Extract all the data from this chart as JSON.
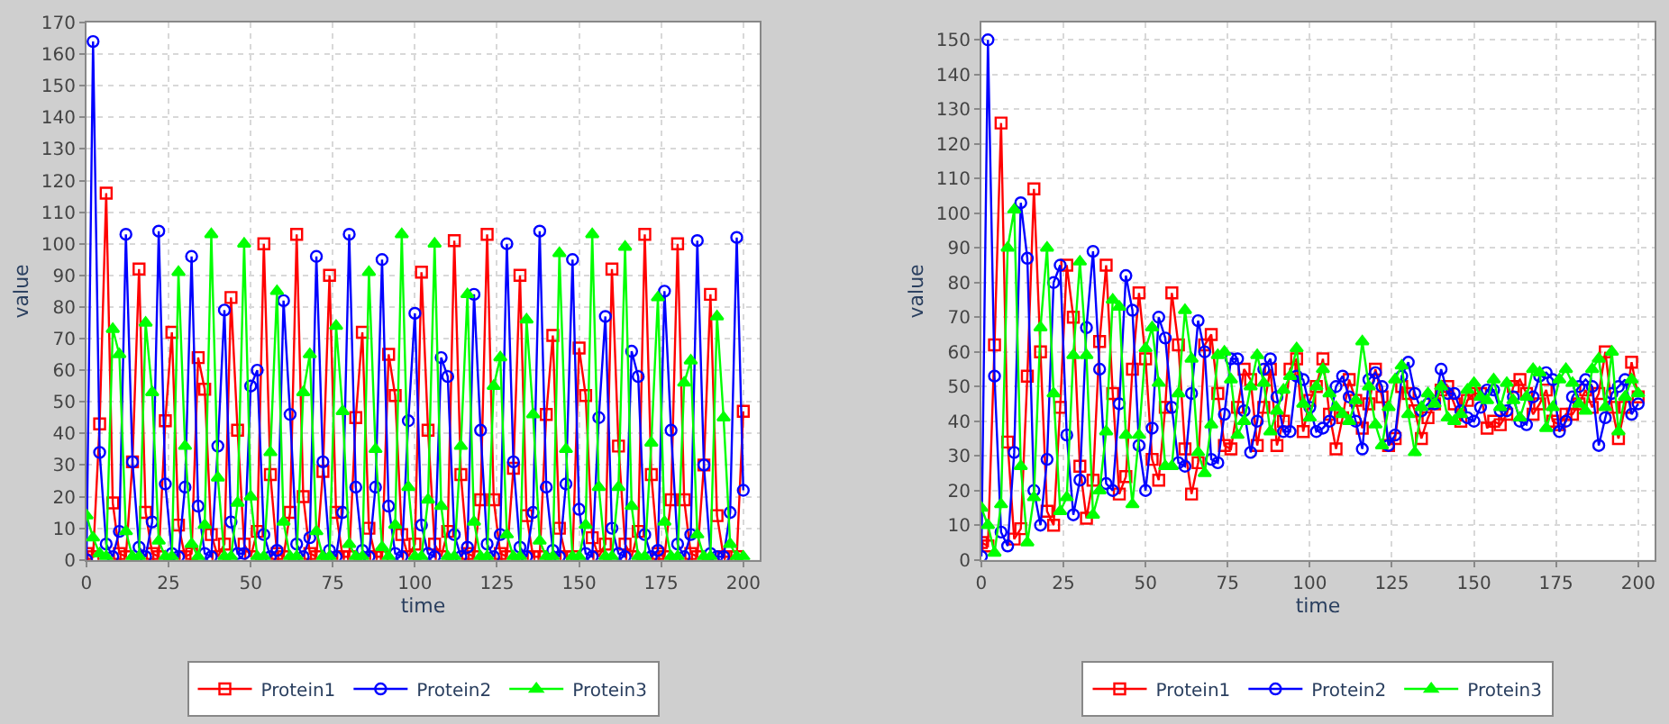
{
  "chart_data": [
    {
      "type": "line",
      "xlabel": "time",
      "ylabel": "value",
      "xlim": [
        0,
        205
      ],
      "ylim": [
        0,
        170
      ],
      "xticks": [
        0,
        25,
        50,
        75,
        100,
        125,
        150,
        175,
        200
      ],
      "yticks": [
        0,
        10,
        20,
        30,
        40,
        50,
        60,
        70,
        80,
        90,
        100,
        110,
        120,
        130,
        140,
        150,
        160,
        170
      ],
      "grid": true,
      "legend": "bottom",
      "x": [
        0,
        2,
        4,
        6,
        8,
        10,
        12,
        14,
        16,
        18,
        20,
        22,
        24,
        26,
        28,
        30,
        32,
        34,
        36,
        38,
        40,
        42,
        44,
        46,
        48,
        50,
        52,
        54,
        56,
        58,
        60,
        62,
        64,
        66,
        68,
        70,
        72,
        74,
        76,
        78,
        80,
        82,
        84,
        86,
        88,
        90,
        92,
        94,
        96,
        98,
        100,
        102,
        104,
        106,
        108,
        110,
        112,
        114,
        116,
        118,
        120,
        122,
        124,
        126,
        128,
        130,
        132,
        134,
        136,
        138,
        140,
        142,
        144,
        146,
        148,
        150,
        152,
        154,
        156,
        158,
        160,
        162,
        164,
        166,
        168,
        170,
        172,
        174,
        176,
        178,
        180,
        182,
        184,
        186,
        188,
        190,
        192,
        194,
        196,
        198,
        200
      ],
      "series": [
        {
          "name": "Protein1",
          "color": "#ff0000",
          "marker": "square",
          "values": [
            2,
            1,
            43,
            116,
            18,
            2,
            1,
            31,
            92,
            15,
            2,
            1,
            44,
            72,
            11,
            1,
            2,
            64,
            54,
            8,
            1,
            5,
            83,
            41,
            5,
            1,
            9,
            100,
            27,
            2,
            1,
            15,
            103,
            20,
            2,
            1,
            28,
            90,
            15,
            1,
            1,
            45,
            72,
            10,
            1,
            1,
            65,
            52,
            8,
            1,
            5,
            91,
            41,
            5,
            1,
            9,
            101,
            27,
            2,
            1,
            19,
            103,
            19,
            2,
            1,
            29,
            90,
            14,
            1,
            1,
            46,
            71,
            10,
            1,
            1,
            67,
            52,
            7,
            1,
            5,
            92,
            36,
            5,
            1,
            9,
            103,
            27,
            2,
            1,
            19,
            100,
            19,
            2,
            1,
            30,
            84,
            14,
            1,
            1,
            1,
            47
          ]
        },
        {
          "name": "Protein2",
          "color": "#0000ff",
          "marker": "circle",
          "values": [
            0,
            164,
            34,
            5,
            1,
            9,
            103,
            31,
            4,
            1,
            12,
            104,
            24,
            2,
            1,
            23,
            96,
            17,
            2,
            1,
            36,
            79,
            12,
            2,
            2,
            55,
            60,
            8,
            1,
            3,
            82,
            46,
            5,
            1,
            7,
            96,
            31,
            3,
            1,
            15,
            103,
            23,
            3,
            1,
            23,
            95,
            17,
            2,
            1,
            44,
            78,
            11,
            2,
            1,
            64,
            58,
            8,
            1,
            4,
            84,
            41,
            5,
            1,
            8,
            100,
            31,
            4,
            1,
            15,
            104,
            23,
            3,
            1,
            24,
            95,
            16,
            2,
            1,
            45,
            77,
            10,
            2,
            1,
            66,
            58,
            8,
            1,
            3,
            85,
            41,
            5,
            1,
            8,
            101,
            30,
            2,
            1,
            1,
            15,
            102,
            22
          ]
        },
        {
          "name": "Protein3",
          "color": "#00ff00",
          "marker": "triangle",
          "values": [
            14,
            7,
            2,
            1,
            73,
            65,
            9,
            1,
            1,
            75,
            53,
            6,
            1,
            1,
            91,
            36,
            5,
            1,
            11,
            103,
            26,
            1,
            1,
            18,
            100,
            20,
            1,
            1,
            34,
            85,
            12,
            1,
            1,
            53,
            65,
            9,
            1,
            1,
            74,
            47,
            5,
            1,
            1,
            91,
            35,
            4,
            1,
            11,
            103,
            23,
            1,
            1,
            19,
            100,
            17,
            1,
            1,
            36,
            84,
            12,
            1,
            1,
            55,
            64,
            8,
            1,
            1,
            76,
            46,
            6,
            1,
            1,
            97,
            35,
            1,
            1,
            11,
            103,
            23,
            1,
            1,
            23,
            99,
            17,
            1,
            1,
            37,
            83,
            12,
            1,
            1,
            56,
            63,
            8,
            1,
            1,
            77,
            45,
            5,
            1,
            1
          ]
        }
      ]
    },
    {
      "type": "line",
      "xlabel": "time",
      "ylabel": "value",
      "xlim": [
        0,
        205
      ],
      "ylim": [
        0,
        155
      ],
      "xticks": [
        0,
        25,
        50,
        75,
        100,
        125,
        150,
        175,
        200
      ],
      "yticks": [
        0,
        10,
        20,
        30,
        40,
        50,
        60,
        70,
        80,
        90,
        100,
        110,
        120,
        130,
        140,
        150
      ],
      "grid": true,
      "legend": "bottom",
      "x": [
        0,
        2,
        4,
        6,
        8,
        10,
        12,
        14,
        16,
        18,
        20,
        22,
        24,
        26,
        28,
        30,
        32,
        34,
        36,
        38,
        40,
        42,
        44,
        46,
        48,
        50,
        52,
        54,
        56,
        58,
        60,
        62,
        64,
        66,
        68,
        70,
        72,
        74,
        76,
        78,
        80,
        82,
        84,
        86,
        88,
        90,
        92,
        94,
        96,
        98,
        100,
        102,
        104,
        106,
        108,
        110,
        112,
        114,
        116,
        118,
        120,
        122,
        124,
        126,
        128,
        130,
        132,
        134,
        136,
        138,
        140,
        142,
        144,
        146,
        148,
        150,
        152,
        154,
        156,
        158,
        160,
        162,
        164,
        166,
        168,
        170,
        172,
        174,
        176,
        178,
        180,
        182,
        184,
        186,
        188,
        190,
        192,
        194,
        196,
        198,
        200
      ],
      "series": [
        {
          "name": "Protein1",
          "color": "#ff0000",
          "marker": "square",
          "values": [
            5,
            4,
            62,
            126,
            34,
            6,
            9,
            53,
            107,
            60,
            14,
            10,
            44,
            85,
            70,
            27,
            12,
            23,
            63,
            85,
            48,
            19,
            24,
            55,
            77,
            58,
            29,
            23,
            44,
            77,
            62,
            32,
            19,
            28,
            62,
            65,
            48,
            33,
            32,
            44,
            55,
            52,
            33,
            44,
            55,
            33,
            40,
            55,
            58,
            37,
            46,
            50,
            58,
            42,
            32,
            41,
            52,
            46,
            38,
            45,
            55,
            47,
            33,
            35,
            50,
            48,
            43,
            35,
            41,
            45,
            49,
            50,
            45,
            40,
            46,
            48,
            48,
            38,
            40,
            39,
            42,
            50,
            52,
            48,
            42,
            45,
            49,
            40,
            39,
            42,
            42,
            45,
            49,
            44,
            48,
            60,
            44,
            35,
            44,
            57,
            47
          ]
        },
        {
          "name": "Protein2",
          "color": "#0000ff",
          "marker": "circle",
          "values": [
            1,
            150,
            53,
            8,
            4,
            31,
            103,
            87,
            20,
            10,
            29,
            80,
            85,
            36,
            13,
            23,
            67,
            89,
            55,
            22,
            20,
            45,
            82,
            72,
            33,
            20,
            38,
            70,
            64,
            44,
            28,
            27,
            48,
            69,
            60,
            29,
            28,
            42,
            58,
            58,
            43,
            31,
            40,
            55,
            58,
            47,
            37,
            37,
            53,
            52,
            44,
            37,
            38,
            40,
            50,
            53,
            47,
            40,
            32,
            52,
            54,
            50,
            33,
            36,
            53,
            57,
            48,
            43,
            45,
            45,
            55,
            48,
            48,
            43,
            41,
            40,
            44,
            49,
            49,
            43,
            43,
            47,
            40,
            39,
            47,
            53,
            54,
            52,
            37,
            40,
            47,
            50,
            52,
            50,
            33,
            41,
            48,
            50,
            52,
            42,
            45
          ]
        },
        {
          "name": "Protein3",
          "color": "#00ff00",
          "marker": "triangle",
          "values": [
            15,
            10,
            2,
            16,
            90,
            101,
            27,
            5,
            18,
            67,
            90,
            48,
            14,
            18,
            59,
            86,
            59,
            13,
            20,
            37,
            75,
            73,
            36,
            16,
            36,
            61,
            67,
            51,
            27,
            27,
            48,
            72,
            58,
            31,
            25,
            39,
            59,
            60,
            52,
            36,
            40,
            50,
            59,
            51,
            37,
            43,
            49,
            53,
            61,
            45,
            41,
            50,
            55,
            48,
            44,
            42,
            40,
            46,
            63,
            50,
            39,
            33,
            44,
            52,
            56,
            42,
            31,
            44,
            48,
            45,
            50,
            41,
            40,
            42,
            49,
            51,
            47,
            46,
            52,
            44,
            51,
            46,
            41,
            47,
            55,
            54,
            38,
            44,
            52,
            55,
            51,
            45,
            43,
            55,
            58,
            44,
            60,
            37,
            47,
            52,
            48
          ]
        }
      ]
    }
  ]
}
